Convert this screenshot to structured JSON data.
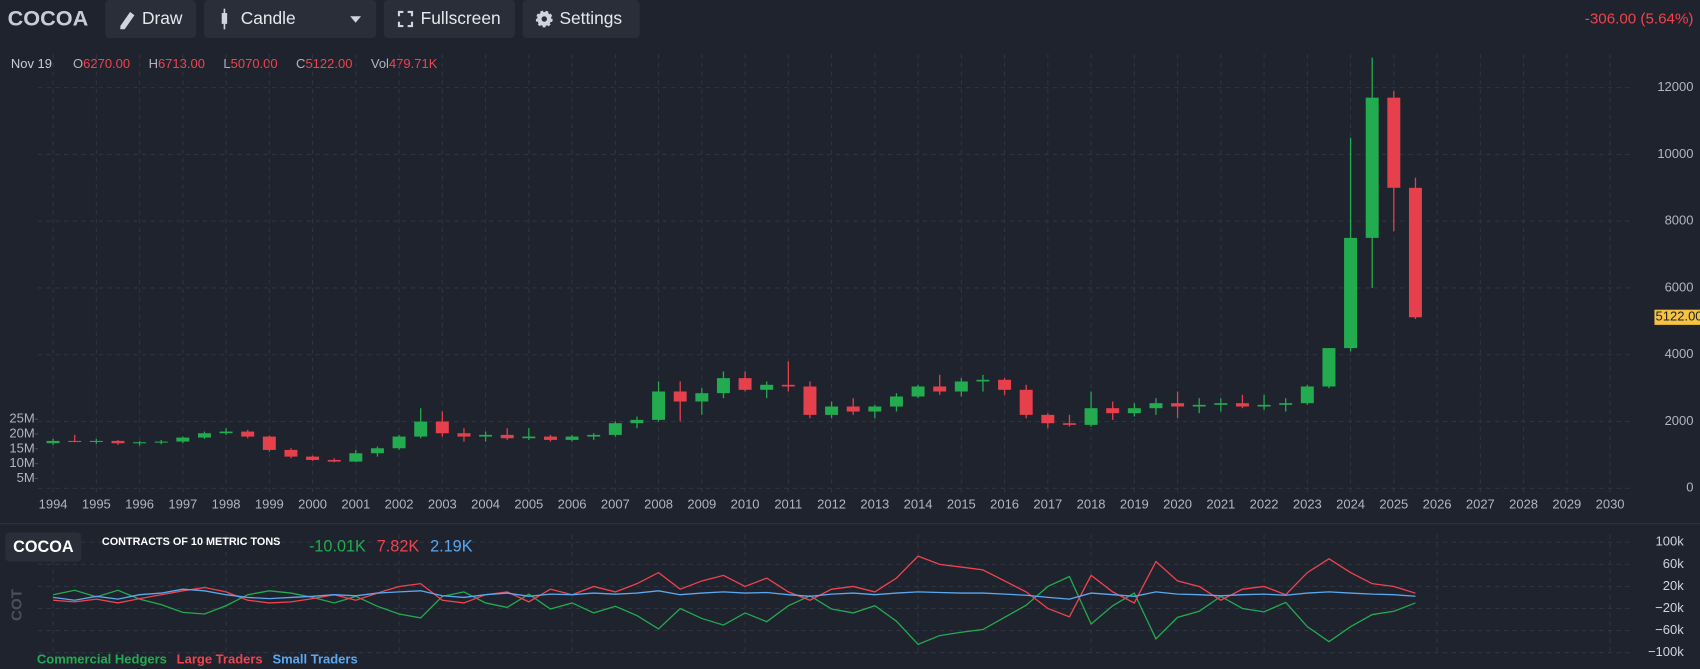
{
  "toolbar": {
    "symbol": "COCOA",
    "buttons": [
      "Draw",
      "Candle",
      "Fullscreen",
      "Settings"
    ],
    "change": "-306.00 (5.64%)"
  },
  "ohlc": {
    "date": "Nov 19",
    "items": [
      {
        "key": "O",
        "value": "6270.00"
      },
      {
        "key": "H",
        "value": "6713.00"
      },
      {
        "key": "L",
        "value": "5070.00"
      },
      {
        "key": "C",
        "value": "5122.00"
      },
      {
        "key": "Vol",
        "value": "479.71K"
      }
    ]
  },
  "chart_data": [
    {
      "type": "candlestick",
      "x": [
        1994,
        1994.5,
        1995,
        1995.5,
        1996,
        1996.5,
        1997,
        1997.5,
        1998,
        1998.5,
        1999,
        1999.5,
        2000,
        2000.5,
        2001,
        2001.5,
        2002,
        2002.5,
        2003,
        2003.5,
        2004,
        2004.5,
        2005,
        2005.5,
        2006,
        2006.5,
        2007,
        2007.5,
        2008,
        2008.5,
        2009,
        2009.5,
        2010,
        2010.5,
        2011,
        2011.5,
        2012,
        2012.5,
        2013,
        2013.5,
        2014,
        2014.5,
        2015,
        2015.5,
        2016,
        2016.5,
        2017,
        2017.5,
        2018,
        2018.5,
        2019,
        2019.5,
        2020,
        2020.5,
        2021,
        2021.5,
        2022,
        2022.5,
        2023,
        2023.5,
        2024,
        2024.5,
        2025,
        2025.5
      ],
      "open": [
        1350,
        1420,
        1400,
        1420,
        1350,
        1380,
        1400,
        1520,
        1650,
        1700,
        1550,
        1150,
        950,
        850,
        800,
        1050,
        1200,
        1550,
        2000,
        1650,
        1550,
        1600,
        1500,
        1550,
        1450,
        1550,
        1600,
        1950,
        2050,
        2900,
        2600,
        2850,
        3300,
        2950,
        3100,
        3050,
        2200,
        2450,
        2300,
        2450,
        2750,
        3050,
        2900,
        3200,
        3250,
        2950,
        2200,
        1950,
        1900,
        2400,
        2250,
        2400,
        2550,
        2450,
        2500,
        2550,
        2450,
        2500,
        2550,
        3050,
        4200,
        7500,
        11700,
        9000
      ],
      "high": [
        1480,
        1600,
        1480,
        1450,
        1420,
        1450,
        1550,
        1700,
        1800,
        1750,
        1580,
        1200,
        980,
        900,
        1150,
        1250,
        1600,
        2400,
        2300,
        1800,
        1700,
        1800,
        1800,
        1600,
        1600,
        1650,
        2000,
        2150,
        3200,
        3200,
        3000,
        3500,
        3500,
        3200,
        3800,
        3200,
        2600,
        2700,
        2500,
        2850,
        3100,
        3400,
        3300,
        3400,
        3300,
        3100,
        2250,
        2200,
        2900,
        2600,
        2550,
        2700,
        2900,
        2700,
        2700,
        2800,
        2800,
        2700,
        3100,
        4200,
        10500,
        12900,
        11900,
        9300
      ],
      "low": [
        1300,
        1380,
        1330,
        1300,
        1280,
        1320,
        1350,
        1480,
        1600,
        1500,
        1100,
        900,
        820,
        780,
        790,
        950,
        1150,
        1500,
        1550,
        1400,
        1400,
        1450,
        1450,
        1400,
        1400,
        1450,
        1550,
        1800,
        2000,
        2000,
        2200,
        2700,
        2900,
        2700,
        2900,
        2100,
        2100,
        2200,
        2100,
        2300,
        2700,
        2800,
        2750,
        2900,
        2800,
        2100,
        1800,
        1850,
        1850,
        2050,
        2150,
        2200,
        2100,
        2250,
        2300,
        2400,
        2350,
        2300,
        2500,
        3000,
        4100,
        6000,
        7700,
        5070
      ],
      "close": [
        1420,
        1400,
        1420,
        1350,
        1380,
        1400,
        1520,
        1650,
        1700,
        1550,
        1150,
        950,
        850,
        800,
        1050,
        1200,
        1550,
        2000,
        1650,
        1550,
        1600,
        1500,
        1550,
        1450,
        1550,
        1600,
        1950,
        2050,
        2900,
        2600,
        2850,
        3300,
        2950,
        3100,
        3050,
        2200,
        2450,
        2300,
        2450,
        2750,
        3050,
        2900,
        3200,
        3250,
        2950,
        2200,
        1950,
        1900,
        2400,
        2250,
        2400,
        2550,
        2450,
        2500,
        2550,
        2450,
        2500,
        2550,
        3050,
        4200,
        7500,
        11700,
        9000,
        5122
      ],
      "up_color": "#22ab4f",
      "down_color": "#e5404b",
      "xlim": [
        1993.65,
        2030.5
      ],
      "xticks": [
        1994,
        1995,
        1996,
        1997,
        1998,
        1999,
        2000,
        2001,
        2002,
        2003,
        2004,
        2005,
        2006,
        2007,
        2008,
        2009,
        2010,
        2011,
        2012,
        2013,
        2014,
        2015,
        2016,
        2017,
        2018,
        2019,
        2020,
        2021,
        2022,
        2023,
        2024,
        2025,
        2026,
        2027,
        2028,
        2029,
        2030
      ],
      "ylim": [
        -150,
        13000
      ],
      "yticks": [
        0,
        2000,
        4000,
        6000,
        8000,
        10000,
        12000
      ],
      "y2lim": [
        0,
        148000000
      ],
      "y2ticks": [
        {
          "value": 5000000,
          "label": "5M"
        },
        {
          "value": 10000000,
          "label": "10M"
        },
        {
          "value": 15000000,
          "label": "15M"
        },
        {
          "value": 20000000,
          "label": "20M"
        },
        {
          "value": 25000000,
          "label": "25M"
        }
      ],
      "grid": true,
      "last_price_label": "5122.00"
    },
    {
      "type": "line",
      "tab": "COCOA",
      "subtitle": "CONTRACTS OF 10 METRIC TONS",
      "y_axis_label": "COT",
      "x": [
        1994,
        1994.5,
        1995,
        1995.5,
        1996,
        1996.5,
        1997,
        1997.5,
        1998,
        1998.5,
        1999,
        1999.5,
        2000,
        2000.5,
        2001,
        2001.5,
        2002,
        2002.5,
        2003,
        2003.5,
        2004,
        2004.5,
        2005,
        2005.5,
        2006,
        2006.5,
        2007,
        2007.5,
        2008,
        2008.5,
        2009,
        2009.5,
        2010,
        2010.5,
        2011,
        2011.5,
        2012,
        2012.5,
        2013,
        2013.5,
        2014,
        2014.5,
        2015,
        2015.5,
        2016,
        2016.5,
        2017,
        2017.5,
        2018,
        2018.5,
        2019,
        2019.5,
        2020,
        2020.5,
        2021,
        2021.5,
        2022,
        2022.5,
        2023,
        2023.5,
        2024,
        2024.5,
        2025,
        2025.5
      ],
      "series": [
        {
          "name": "Commercial Hedgers",
          "color": "#22ab4f",
          "last_label": "-10.01K",
          "values": [
            5000,
            13000,
            1000,
            13000,
            -3000,
            -13000,
            -27000,
            -30000,
            -15000,
            5000,
            12000,
            8000,
            0,
            -10000,
            2000,
            -16000,
            -30000,
            -37000,
            2000,
            10000,
            -10000,
            -18000,
            6000,
            -21000,
            -10000,
            -28000,
            -16000,
            -33000,
            -57000,
            -20000,
            -38000,
            -50000,
            -28000,
            -44000,
            -15000,
            3000,
            -21000,
            -28000,
            -15000,
            -43000,
            -85000,
            -69000,
            -63000,
            -58000,
            -36000,
            -14000,
            20000,
            38000,
            -48000,
            -15000,
            8000,
            -75000,
            -36000,
            -25000,
            2000,
            -20000,
            -26000,
            -9000,
            -53000,
            -80000,
            -53000,
            -31000,
            -25000,
            -10010
          ]
        },
        {
          "name": "Large Traders",
          "color": "#f0434e",
          "last_label": "7.82K",
          "values": [
            -5000,
            -8000,
            -3000,
            -10000,
            -2000,
            5000,
            12000,
            18000,
            10000,
            -5000,
            -10000,
            -8000,
            -2000,
            5000,
            -5000,
            8000,
            20000,
            25000,
            -5000,
            -10000,
            5000,
            10000,
            -8000,
            15000,
            5000,
            20000,
            10000,
            25000,
            45000,
            15000,
            30000,
            40000,
            20000,
            35000,
            10000,
            -5000,
            15000,
            20000,
            10000,
            35000,
            75000,
            60000,
            55000,
            50000,
            30000,
            10000,
            -20000,
            -35000,
            40000,
            10000,
            -10000,
            65000,
            30000,
            20000,
            -5000,
            15000,
            20000,
            5000,
            45000,
            70000,
            45000,
            25000,
            20000,
            7820
          ]
        },
        {
          "name": "Small Traders",
          "color": "#5aa8f0",
          "last_label": "2.19K",
          "values": [
            0,
            -5000,
            2000,
            -3000,
            5000,
            8000,
            15000,
            12000,
            5000,
            0,
            -2000,
            0,
            2000,
            5000,
            3000,
            8000,
            10000,
            12000,
            3000,
            0,
            5000,
            8000,
            2000,
            6000,
            5000,
            8000,
            6000,
            8000,
            12000,
            5000,
            8000,
            10000,
            8000,
            9000,
            5000,
            2000,
            6000,
            8000,
            5000,
            8000,
            10000,
            9000,
            8000,
            8000,
            6000,
            4000,
            0,
            -3000,
            8000,
            5000,
            2000,
            10000,
            6000,
            5000,
            3000,
            5000,
            6000,
            4000,
            8000,
            10000,
            8000,
            6000,
            5000,
            2190
          ]
        }
      ],
      "xlim": [
        1993.65,
        2030.5
      ],
      "xticks": [
        1994,
        1998,
        2002,
        2006,
        2010,
        2014,
        2018,
        2022,
        2026,
        2030
      ],
      "ylim": [
        -106000,
        114000
      ],
      "yticks": [
        {
          "value": 100000,
          "label": "100k"
        },
        {
          "value": 60000,
          "label": "60k"
        },
        {
          "value": 20000,
          "label": "20k"
        },
        {
          "value": -20000,
          "label": "−20k"
        },
        {
          "value": -60000,
          "label": "−60k"
        },
        {
          "value": -100000,
          "label": "−100k"
        }
      ],
      "grid": true
    }
  ]
}
